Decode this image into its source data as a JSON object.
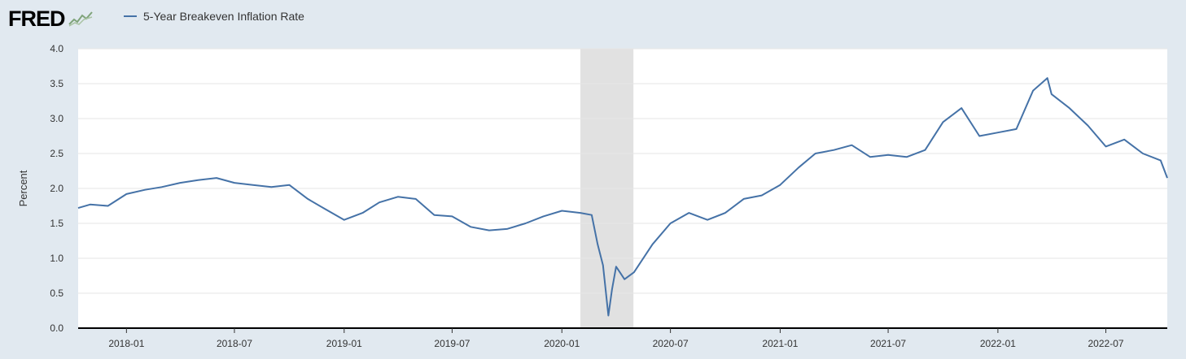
{
  "header": {
    "logo_text": "FRED",
    "logo_icon": "line-chart-icon",
    "legend_label": "5-Year Breakeven Inflation Rate"
  },
  "colors": {
    "series": "#4572a7",
    "background": "#e1e9f0",
    "plot": "#ffffff",
    "recession": "#e1e1e1",
    "grid": "#e6e6e6"
  },
  "chart_data": {
    "type": "line",
    "title": "",
    "xlabel": "",
    "ylabel": "Percent",
    "ylim": [
      0.0,
      4.0
    ],
    "xlim": [
      "2017-10-12",
      "2022-10-12"
    ],
    "yticks": [
      "0.0",
      "0.5",
      "1.0",
      "1.5",
      "2.0",
      "2.5",
      "3.0",
      "3.5",
      "4.0"
    ],
    "xticks": [
      "2018-01",
      "2018-07",
      "2019-01",
      "2019-07",
      "2020-01",
      "2020-07",
      "2021-01",
      "2021-07",
      "2022-01",
      "2022-07"
    ],
    "grid": true,
    "recession": [
      "2020-02-01",
      "2020-04-30"
    ],
    "series": [
      {
        "name": "5-Year Breakeven Inflation Rate",
        "x": [
          "2017-10-12",
          "2017-11-01",
          "2017-12-01",
          "2018-01-01",
          "2018-02-01",
          "2018-03-01",
          "2018-04-01",
          "2018-05-01",
          "2018-06-01",
          "2018-07-01",
          "2018-08-01",
          "2018-09-01",
          "2018-10-01",
          "2018-11-01",
          "2018-12-01",
          "2019-01-01",
          "2019-02-01",
          "2019-03-01",
          "2019-04-01",
          "2019-05-01",
          "2019-06-01",
          "2019-07-01",
          "2019-08-01",
          "2019-09-01",
          "2019-10-01",
          "2019-11-01",
          "2019-12-01",
          "2020-01-01",
          "2020-02-01",
          "2020-02-20",
          "2020-03-01",
          "2020-03-10",
          "2020-03-19",
          "2020-03-25",
          "2020-04-01",
          "2020-04-15",
          "2020-05-01",
          "2020-06-01",
          "2020-07-01",
          "2020-08-01",
          "2020-09-01",
          "2020-10-01",
          "2020-11-01",
          "2020-12-01",
          "2021-01-01",
          "2021-02-01",
          "2021-03-01",
          "2021-04-01",
          "2021-05-01",
          "2021-06-01",
          "2021-07-01",
          "2021-08-01",
          "2021-09-01",
          "2021-10-01",
          "2021-11-01",
          "2021-12-01",
          "2022-01-01",
          "2022-02-01",
          "2022-03-01",
          "2022-03-25",
          "2022-04-01",
          "2022-05-01",
          "2022-06-01",
          "2022-07-01",
          "2022-08-01",
          "2022-09-01",
          "2022-10-01",
          "2022-10-12"
        ],
        "y": [
          1.72,
          1.77,
          1.75,
          1.92,
          1.98,
          2.02,
          2.08,
          2.12,
          2.15,
          2.08,
          2.05,
          2.02,
          2.05,
          1.85,
          1.7,
          1.55,
          1.65,
          1.8,
          1.88,
          1.85,
          1.62,
          1.6,
          1.45,
          1.4,
          1.42,
          1.5,
          1.6,
          1.68,
          1.65,
          1.62,
          1.2,
          0.9,
          0.18,
          0.55,
          0.88,
          0.7,
          0.8,
          1.2,
          1.5,
          1.65,
          1.55,
          1.65,
          1.85,
          1.9,
          2.05,
          2.3,
          2.5,
          2.55,
          2.62,
          2.45,
          2.48,
          2.45,
          2.55,
          2.95,
          3.15,
          2.75,
          2.8,
          2.85,
          3.4,
          3.58,
          3.35,
          3.15,
          2.9,
          2.6,
          2.7,
          2.5,
          2.4,
          2.15
        ]
      }
    ]
  }
}
